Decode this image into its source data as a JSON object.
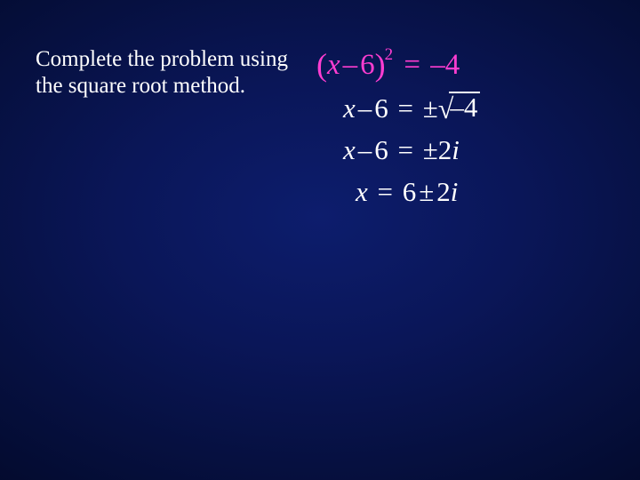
{
  "instruction": "Complete the problem using the square root method.",
  "eq1": {
    "lparen": "(",
    "var": "x",
    "minus": "–",
    "const": "6",
    "rparen": ")",
    "exp": "2",
    "eq": "=",
    "neg": "–",
    "rhs": "4"
  },
  "eq2": {
    "var": "x",
    "minus": "–",
    "const": "6",
    "eq": "=",
    "pm": "±",
    "sqrt": "√",
    "neg": "–",
    "radicand": "4"
  },
  "eq3": {
    "var": "x",
    "minus": "–",
    "const": "6",
    "eq": "=",
    "pm": "±",
    "coef": "2",
    "i": "i"
  },
  "eq4": {
    "var": "x",
    "eq": "=",
    "const": "6",
    "pm": "±",
    "coef": "2",
    "i": "i"
  },
  "colors": {
    "highlight": "#ff3dd1",
    "text": "#ffffff",
    "bg_center": "#0d1d6d",
    "bg_edge": "#020826"
  }
}
